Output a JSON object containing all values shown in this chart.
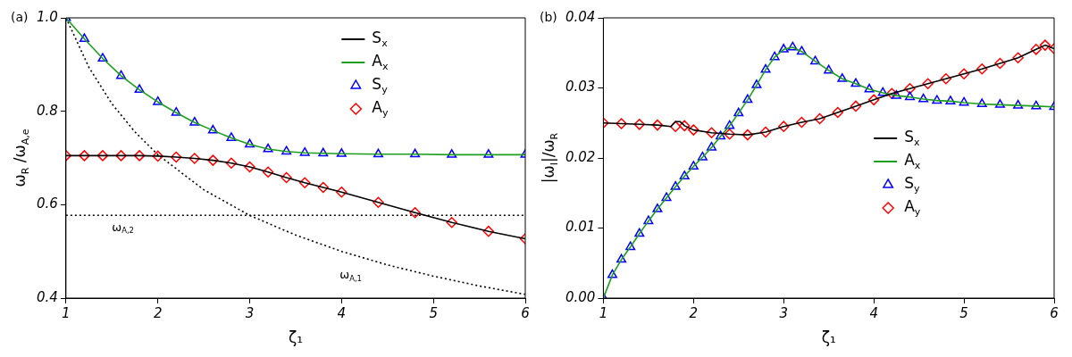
{
  "chart_data": [
    {
      "type": "line",
      "annotations": [
        "(a)",
        {
          "text": "ω$_{A,1}$",
          "x": 4.1,
          "y": 0.49
        }
      ],
      "xlabel": "ζ₁",
      "ylabel": "ω$_{R}$ /ω$_{A,e}$",
      "xlim": [
        1,
        6
      ],
      "xticks": [
        1,
        2,
        3,
        4,
        5,
        6
      ],
      "ylim": [
        0.4,
        1.0
      ],
      "yticks": [
        0.4,
        0.6,
        0.8,
        {
          "value": 1.0,
          "label": "1.0"
        }
      ],
      "legend": "top right",
      "ref_lines": [
        {
          "axis": "y",
          "value": 0.577,
          "label": "ω$_{A,2}$",
          "line_style": "dotted",
          "color": "#000000"
        }
      ],
      "series": [
        {
          "name": "S$_{x}$",
          "color": "#000000",
          "marker": "none",
          "x": [
            1,
            1.2,
            1.4,
            1.6,
            1.8,
            2,
            2.2,
            2.4,
            2.6,
            2.8,
            3,
            3.2,
            3.4,
            3.6,
            3.8,
            4,
            4.4,
            4.8,
            5.2,
            5.6,
            6
          ],
          "values": [
            0.705,
            0.705,
            0.705,
            0.705,
            0.705,
            0.704,
            0.702,
            0.699,
            0.695,
            0.689,
            0.681,
            0.67,
            0.658,
            0.647,
            0.637,
            0.627,
            0.605,
            0.583,
            0.562,
            0.543,
            0.527
          ]
        },
        {
          "name": "A$_{x}$",
          "color": "#1e9e1e",
          "marker": "none",
          "x": [
            1,
            1.2,
            1.4,
            1.6,
            1.8,
            2,
            2.2,
            2.4,
            2.6,
            2.8,
            3,
            3.2,
            3.4,
            3.6,
            3.8,
            4,
            4.4,
            4.8,
            5.2,
            5.6,
            6
          ],
          "values": [
            1.0,
            0.955,
            0.913,
            0.876,
            0.846,
            0.82,
            0.797,
            0.776,
            0.759,
            0.743,
            0.729,
            0.719,
            0.714,
            0.711,
            0.71,
            0.709,
            0.708,
            0.708,
            0.707,
            0.707,
            0.707
          ]
        },
        {
          "name": "S$_{y}$",
          "type": "scatter",
          "color": "#0000ff",
          "marker": "triangle",
          "x": [
            1,
            1.2,
            1.4,
            1.6,
            1.8,
            2,
            2.2,
            2.4,
            2.6,
            2.8,
            3,
            3.2,
            3.4,
            3.6,
            3.8,
            4,
            4.4,
            4.8,
            5.2,
            5.6,
            6
          ],
          "values": [
            1.0,
            0.955,
            0.913,
            0.876,
            0.846,
            0.82,
            0.797,
            0.776,
            0.759,
            0.743,
            0.729,
            0.719,
            0.714,
            0.711,
            0.71,
            0.709,
            0.708,
            0.708,
            0.707,
            0.707,
            0.707
          ]
        },
        {
          "name": "A$_{y}$",
          "type": "scatter",
          "color": "#ff0000",
          "marker": "diamond",
          "x": [
            1,
            1.2,
            1.4,
            1.6,
            1.8,
            2,
            2.2,
            2.4,
            2.6,
            2.8,
            3,
            3.2,
            3.4,
            3.6,
            3.8,
            4,
            4.4,
            4.8,
            5.2,
            5.6,
            6
          ],
          "values": [
            0.705,
            0.705,
            0.705,
            0.705,
            0.705,
            0.704,
            0.702,
            0.699,
            0.695,
            0.689,
            0.681,
            0.67,
            0.658,
            0.647,
            0.637,
            0.627,
            0.605,
            0.583,
            0.562,
            0.543,
            0.527
          ]
        },
        {
          "color": "#000000",
          "marker": "none",
          "line_style": "dotted",
          "x": [
            1,
            1.25,
            1.5,
            1.75,
            2,
            2.5,
            3,
            3.5,
            4,
            4.5,
            5,
            5.5,
            6
          ],
          "values": [
            1.0,
            0.894,
            0.816,
            0.756,
            0.707,
            0.632,
            0.577,
            0.535,
            0.5,
            0.471,
            0.447,
            0.426,
            0.408
          ]
        }
      ]
    },
    {
      "type": "line",
      "annotations": [
        "(b)"
      ],
      "xlabel": "ζ₁",
      "ylabel": "|ω$_{I}$|/ω$_{R}$",
      "xlim": [
        1,
        6
      ],
      "xticks": [
        1,
        2,
        3,
        4,
        5,
        6
      ],
      "ylim": [
        0,
        0.04
      ],
      "yticks": [
        {
          "value": 0,
          "label": "0.00"
        },
        {
          "value": 0.01,
          "label": "0.01"
        },
        {
          "value": 0.02,
          "label": "0.02"
        },
        {
          "value": 0.03,
          "label": "0.03"
        },
        {
          "value": 0.04,
          "label": "0.04"
        }
      ],
      "legend": "right",
      "series": [
        {
          "name": "S$_{x}$",
          "color": "#000000",
          "marker": "none",
          "x": [
            1,
            1.2,
            1.4,
            1.6,
            1.75,
            1.8,
            1.85,
            1.9,
            2,
            2.2,
            2.4,
            2.6,
            2.8,
            3,
            3.2,
            3.4,
            3.6,
            3.8,
            4,
            4.2,
            4.4,
            4.6,
            4.8,
            5,
            5.2,
            5.4,
            5.6,
            5.8,
            5.9,
            6
          ],
          "values": [
            0.025,
            0.0249,
            0.0248,
            0.0247,
            0.0245,
            0.0252,
            0.0252,
            0.0246,
            0.024,
            0.0236,
            0.0234,
            0.0233,
            0.0237,
            0.0245,
            0.0251,
            0.0256,
            0.0265,
            0.0274,
            0.0283,
            0.0292,
            0.0299,
            0.0306,
            0.0313,
            0.032,
            0.0327,
            0.0335,
            0.0343,
            0.0355,
            0.0361,
            0.0356
          ]
        },
        {
          "name": "A$_{x}$",
          "color": "#1e9e1e",
          "marker": "none",
          "x": [
            1,
            1.1,
            1.2,
            1.3,
            1.4,
            1.5,
            1.6,
            1.7,
            1.8,
            1.9,
            2,
            2.1,
            2.2,
            2.3,
            2.4,
            2.5,
            2.6,
            2.7,
            2.8,
            2.9,
            3,
            3.1,
            3.2,
            3.35,
            3.5,
            3.65,
            3.8,
            3.95,
            4.1,
            4.25,
            4.4,
            4.55,
            4.7,
            4.85,
            5,
            5.2,
            5.4,
            5.6,
            5.8,
            6
          ],
          "values": [
            0,
            0.0033,
            0.0055,
            0.0073,
            0.0092,
            0.011,
            0.0127,
            0.0143,
            0.0159,
            0.0174,
            0.0188,
            0.0201,
            0.0215,
            0.0231,
            0.0246,
            0.0264,
            0.0283,
            0.0304,
            0.0326,
            0.0344,
            0.0355,
            0.0358,
            0.0352,
            0.0338,
            0.0325,
            0.0313,
            0.0306,
            0.0298,
            0.0293,
            0.0289,
            0.0287,
            0.0284,
            0.0282,
            0.0281,
            0.0279,
            0.0277,
            0.0276,
            0.0275,
            0.0274,
            0.0273
          ]
        },
        {
          "name": "S$_{y}$",
          "type": "scatter",
          "color": "#0000ff",
          "marker": "triangle",
          "x": [
            1,
            1.1,
            1.2,
            1.3,
            1.4,
            1.5,
            1.6,
            1.7,
            1.8,
            1.9,
            2,
            2.1,
            2.2,
            2.3,
            2.4,
            2.5,
            2.6,
            2.7,
            2.8,
            2.9,
            3,
            3.1,
            3.2,
            3.35,
            3.5,
            3.65,
            3.8,
            3.95,
            4.1,
            4.25,
            4.4,
            4.55,
            4.7,
            4.85,
            5,
            5.2,
            5.4,
            5.6,
            5.8,
            6
          ],
          "values": [
            0,
            0.0033,
            0.0055,
            0.0073,
            0.0092,
            0.011,
            0.0127,
            0.0143,
            0.0159,
            0.0174,
            0.0188,
            0.0201,
            0.0215,
            0.0231,
            0.0246,
            0.0264,
            0.0283,
            0.0304,
            0.0326,
            0.0344,
            0.0355,
            0.0358,
            0.0352,
            0.0338,
            0.0325,
            0.0313,
            0.0306,
            0.0298,
            0.0293,
            0.0289,
            0.0287,
            0.0284,
            0.0282,
            0.0281,
            0.0279,
            0.0277,
            0.0276,
            0.0275,
            0.0274,
            0.0273
          ]
        },
        {
          "name": "A$_{y}$",
          "type": "scatter",
          "color": "#ff0000",
          "marker": "diamond",
          "x": [
            1,
            1.2,
            1.4,
            1.6,
            1.8,
            1.9,
            2,
            2.2,
            2.4,
            2.6,
            2.8,
            3,
            3.2,
            3.4,
            3.6,
            3.8,
            4,
            4.2,
            4.4,
            4.6,
            4.8,
            5,
            5.2,
            5.4,
            5.6,
            5.8,
            5.9,
            6
          ],
          "values": [
            0.025,
            0.0249,
            0.0248,
            0.0247,
            0.0245,
            0.0246,
            0.024,
            0.0236,
            0.0234,
            0.0233,
            0.0237,
            0.0245,
            0.0251,
            0.0256,
            0.0265,
            0.0274,
            0.0283,
            0.0292,
            0.0299,
            0.0306,
            0.0313,
            0.032,
            0.0327,
            0.0335,
            0.0343,
            0.0355,
            0.0361,
            0.0356
          ]
        }
      ]
    }
  ]
}
